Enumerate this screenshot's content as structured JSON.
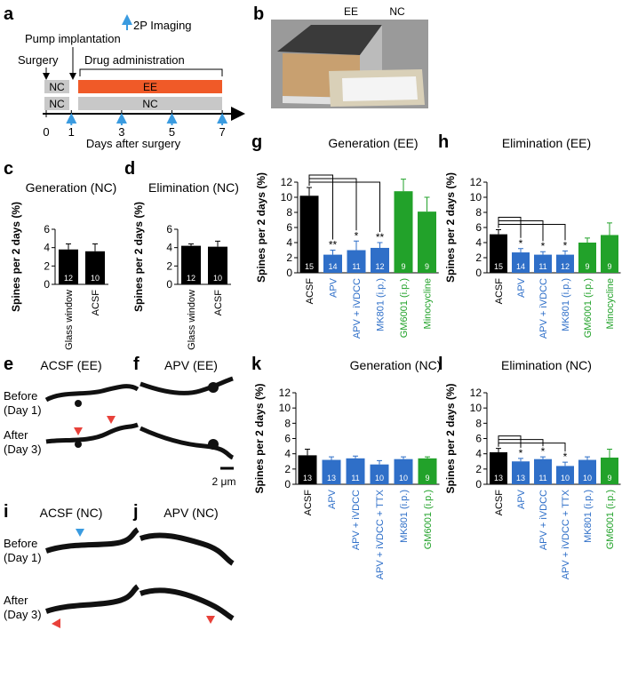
{
  "timeline": {
    "panel": "a",
    "imaging_legend": "2P Imaging",
    "pump": "Pump implantation",
    "surgery": "Surgery",
    "drug": "Drug administration",
    "rows": [
      [
        "NC",
        "EE"
      ],
      [
        "NC",
        "NC"
      ]
    ],
    "ticks": [
      0,
      1,
      3,
      5,
      7
    ],
    "xlabel": "Days after surgery"
  },
  "photo": {
    "panel": "b",
    "labels": [
      "EE",
      "NC"
    ]
  },
  "images": [
    {
      "panel": "e",
      "title": "ACSF (EE)"
    },
    {
      "panel": "f",
      "title": "APV (EE)"
    },
    {
      "panel": "i",
      "title": "ACSF (NC)"
    },
    {
      "panel": "j",
      "title": "APV (NC)"
    }
  ],
  "row_labels": {
    "before": [
      "Before",
      "(Day 1)"
    ],
    "after": [
      "After",
      "(Day 3)"
    ]
  },
  "scale_bar": "2 μm",
  "chart_data": [
    {
      "type": "bar",
      "panel": "c",
      "title": "Generation (NC)",
      "ylabel": "Spines per 2 days (%)",
      "categories": [
        "Glass window",
        "ACSF"
      ],
      "values": [
        3.8,
        3.6
      ],
      "errors": [
        0.6,
        0.8
      ],
      "n": [
        12,
        10
      ],
      "annotations": [
        null,
        null
      ],
      "colors": [
        "#000000",
        "#000000"
      ],
      "ylim": [
        0,
        6
      ],
      "yticks": [
        0,
        2,
        4,
        6
      ]
    },
    {
      "type": "bar",
      "panel": "d",
      "title": "Elimination (NC)",
      "ylabel": "Spines per 2 days (%)",
      "categories": [
        "Glass window",
        "ACSF"
      ],
      "values": [
        4.2,
        4.1
      ],
      "errors": [
        0.2,
        0.6
      ],
      "n": [
        12,
        10
      ],
      "annotations": [
        null,
        null
      ],
      "colors": [
        "#000000",
        "#000000"
      ],
      "ylim": [
        0,
        6
      ],
      "yticks": [
        0,
        2,
        4,
        6
      ]
    },
    {
      "type": "bar",
      "panel": "g",
      "title": "Generation (EE)",
      "ylabel": "Spines per 2 days (%)",
      "categories": [
        "ACSF",
        "APV",
        "APV + iVDCC",
        "MK801 (i.p.)",
        "GM6001 (i.p.)",
        "Minocycline"
      ],
      "values": [
        10.2,
        2.4,
        3.0,
        3.3,
        10.8,
        8.1
      ],
      "errors": [
        1.1,
        0.6,
        1.2,
        0.7,
        1.6,
        1.9
      ],
      "n": [
        15,
        14,
        11,
        12,
        9,
        9
      ],
      "annotations": [
        null,
        "**",
        "*",
        "**",
        null,
        null
      ],
      "colors": [
        "#000000",
        "#2f6fc8",
        "#2f6fc8",
        "#2f6fc8",
        "#22a22a",
        "#22a22a"
      ],
      "ylim": [
        0,
        12
      ],
      "yticks": [
        0,
        2,
        4,
        6,
        8,
        10,
        12
      ]
    },
    {
      "type": "bar",
      "panel": "h",
      "title": "Elimination (EE)",
      "ylabel": "Spines per 2 days (%)",
      "categories": [
        "ACSF",
        "APV",
        "APV + iVDCC",
        "MK801 (i.p.)",
        "GM6001 (i.p.)",
        "Minocycline"
      ],
      "values": [
        5.1,
        2.7,
        2.4,
        2.4,
        4.0,
        5.0
      ],
      "errors": [
        0.6,
        0.5,
        0.4,
        0.5,
        0.6,
        1.6
      ],
      "n": [
        15,
        14,
        11,
        12,
        9,
        9
      ],
      "annotations": [
        null,
        "*",
        "*",
        "*",
        null,
        null
      ],
      "colors": [
        "#000000",
        "#2f6fc8",
        "#2f6fc8",
        "#2f6fc8",
        "#22a22a",
        "#22a22a"
      ],
      "ylim": [
        0,
        12
      ],
      "yticks": [
        0,
        2,
        4,
        6,
        8,
        10,
        12
      ]
    },
    {
      "type": "bar",
      "panel": "k",
      "title": "Generation (NC)",
      "ylabel": "Spines per 2 days (%)",
      "categories": [
        "ACSF",
        "APV",
        "APV + iVDCC",
        "APV + iVDCC + TTX",
        "MK801 (i.p.)",
        "GM6001 (i.p.)"
      ],
      "values": [
        3.8,
        3.2,
        3.4,
        2.6,
        3.3,
        3.4
      ],
      "errors": [
        0.8,
        0.4,
        0.3,
        0.5,
        0.3,
        0.2
      ],
      "n": [
        13,
        13,
        11,
        10,
        10,
        9
      ],
      "annotations": [
        null,
        null,
        null,
        null,
        null,
        null
      ],
      "colors": [
        "#000000",
        "#2f6fc8",
        "#2f6fc8",
        "#2f6fc8",
        "#2f6fc8",
        "#22a22a"
      ],
      "ylim": [
        0,
        12
      ],
      "yticks": [
        0,
        2,
        4,
        6,
        8,
        10,
        12
      ]
    },
    {
      "type": "bar",
      "panel": "l",
      "title": "Elimination (NC)",
      "ylabel": "Spines per 2 days (%)",
      "categories": [
        "ACSF",
        "APV",
        "APV + iVDCC",
        "APV + iVDCC + TTX",
        "MK801 (i.p.)",
        "GM6001 (i.p.)"
      ],
      "values": [
        4.2,
        3.0,
        3.3,
        2.4,
        3.2,
        3.5
      ],
      "errors": [
        0.5,
        0.4,
        0.3,
        0.5,
        0.4,
        1.1
      ],
      "n": [
        13,
        13,
        11,
        10,
        10,
        9
      ],
      "annotations": [
        null,
        "*",
        "*",
        "*",
        null,
        null
      ],
      "colors": [
        "#000000",
        "#2f6fc8",
        "#2f6fc8",
        "#2f6fc8",
        "#2f6fc8",
        "#22a22a"
      ],
      "ylim": [
        0,
        12
      ],
      "yticks": [
        0,
        2,
        4,
        6,
        8,
        10,
        12
      ]
    }
  ]
}
